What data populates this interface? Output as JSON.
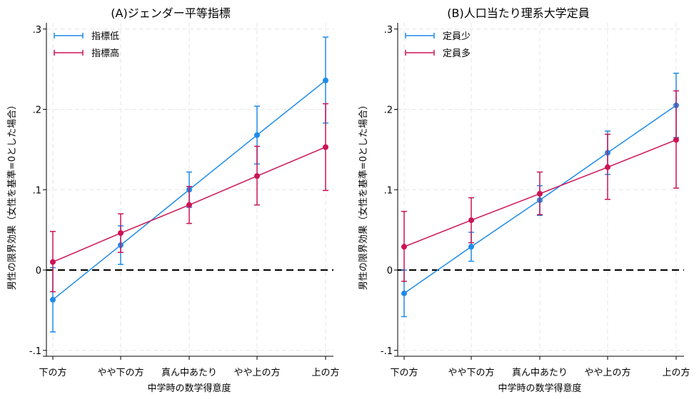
{
  "chart_data": [
    {
      "type": "line",
      "title": "(A)ジェンダー平等指標",
      "xlabel": "中学時の数学得意度",
      "ylabel": "男性の限界効果（女性を基準=0とした場合）",
      "categories": [
        "下の方",
        "やや下の方",
        "真ん中あたり",
        "やや上の方",
        "上の方"
      ],
      "yticks": [
        ".3",
        ".2",
        ".1",
        "0",
        "-.1"
      ],
      "ylim": [
        -0.11,
        0.3
      ],
      "reference_line": 0,
      "legend_position": "top-left",
      "series": [
        {
          "name": "指標低",
          "color": "#1f8be8",
          "values": [
            -0.037,
            0.031,
            0.1,
            0.168,
            0.236
          ],
          "ci_low": [
            -0.077,
            0.007,
            0.078,
            0.132,
            0.183
          ],
          "ci_high": [
            0.003,
            0.055,
            0.122,
            0.204,
            0.29
          ]
        },
        {
          "name": "指標高",
          "color": "#cc1455",
          "values": [
            0.01,
            0.046,
            0.081,
            0.117,
            0.153
          ],
          "ci_low": [
            -0.027,
            0.022,
            0.058,
            0.081,
            0.099
          ],
          "ci_high": [
            0.048,
            0.07,
            0.104,
            0.154,
            0.207
          ]
        }
      ]
    },
    {
      "type": "line",
      "title": "(B)人口当たり理系大学定員",
      "xlabel": "中学時の数学得意度",
      "ylabel": "男性の限界効果（女性を基準=0とした場合）",
      "categories": [
        "下の方",
        "やや下の方",
        "真ん中あたり",
        "やや上の方",
        "上の方"
      ],
      "yticks": [
        ".3",
        ".2",
        ".1",
        "0",
        "-.1"
      ],
      "ylim": [
        -0.11,
        0.3
      ],
      "reference_line": 0,
      "legend_position": "top-left",
      "series": [
        {
          "name": "定員少",
          "color": "#1f8be8",
          "values": [
            -0.029,
            0.029,
            0.087,
            0.146,
            0.205
          ],
          "ci_low": [
            -0.058,
            0.011,
            0.068,
            0.119,
            0.165
          ],
          "ci_high": [
            0.0,
            0.047,
            0.105,
            0.173,
            0.245
          ]
        },
        {
          "name": "定員多",
          "color": "#cc1455",
          "values": [
            0.029,
            0.062,
            0.095,
            0.128,
            0.162
          ],
          "ci_low": [
            -0.014,
            0.034,
            0.069,
            0.088,
            0.102
          ],
          "ci_high": [
            0.073,
            0.09,
            0.122,
            0.169,
            0.223
          ]
        }
      ]
    }
  ]
}
